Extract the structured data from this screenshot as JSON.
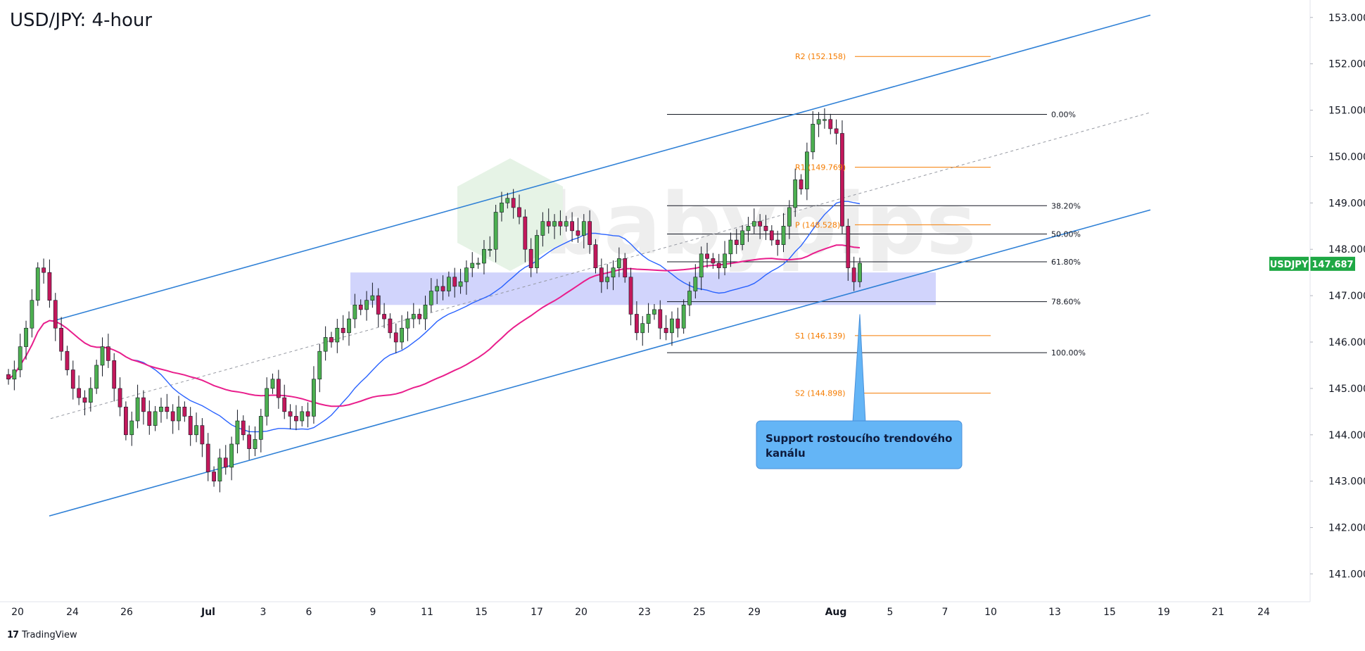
{
  "chart_data": {
    "type": "candlestick",
    "title": "USD/JPY: 4-hour",
    "symbol": "USDJPY",
    "last_price": "147.687",
    "ylim": [
      140.4,
      153.3
    ],
    "y_ticks": [
      "141.000",
      "142.000",
      "143.000",
      "144.000",
      "145.000",
      "146.000",
      "147.000",
      "148.000",
      "149.000",
      "150.000",
      "151.000",
      "152.000",
      "153.000"
    ],
    "x_ticks": [
      "20",
      "24",
      "26",
      "Jul",
      "3",
      "6",
      "9",
      "11",
      "15",
      "17",
      "20",
      "23",
      "25",
      "29",
      "Aug",
      "5",
      "7",
      "10",
      "13",
      "15",
      "19",
      "21",
      "24"
    ],
    "ohlc_path": [
      145.3,
      145.2,
      145.4,
      145.9,
      146.3,
      146.9,
      147.6,
      147.5,
      146.9,
      146.3,
      145.8,
      145.4,
      145.0,
      144.8,
      144.7,
      145.0,
      145.5,
      145.9,
      145.6,
      145.0,
      144.6,
      144.0,
      144.3,
      144.8,
      144.5,
      144.2,
      144.5,
      144.6,
      144.5,
      144.3,
      144.6,
      144.4,
      144.0,
      144.2,
      143.8,
      143.2,
      143.0,
      143.5,
      143.3,
      143.8,
      144.3,
      144.0,
      143.7,
      143.9,
      144.4,
      145.0,
      145.2,
      144.8,
      144.5,
      144.4,
      144.3,
      144.5,
      144.4,
      145.2,
      145.8,
      146.1,
      146.0,
      146.3,
      146.2,
      146.5,
      146.8,
      146.7,
      146.9,
      147.0,
      146.6,
      146.5,
      146.2,
      146.0,
      146.3,
      146.5,
      146.6,
      146.5,
      146.8,
      147.1,
      147.2,
      147.1,
      147.4,
      147.2,
      147.3,
      147.6,
      147.7,
      147.7,
      148.0,
      148.0,
      148.8,
      149.0,
      149.1,
      148.9,
      148.7,
      148.0,
      147.6,
      148.3,
      148.6,
      148.5,
      148.6,
      148.5,
      148.6,
      148.4,
      148.3,
      148.6,
      148.1,
      147.6,
      147.3,
      147.4,
      147.6,
      147.8,
      147.4,
      146.6,
      146.2,
      146.4,
      146.6,
      146.7,
      146.3,
      146.2,
      146.5,
      146.3,
      146.8,
      147.1,
      147.4,
      147.9,
      147.8,
      147.7,
      147.6,
      147.9,
      148.2,
      148.1,
      148.4,
      148.5,
      148.6,
      148.5,
      148.4,
      148.2,
      148.1,
      148.5,
      148.9,
      149.5,
      149.3,
      150.1,
      150.7,
      150.8,
      150.8,
      150.6,
      150.5,
      148.5,
      147.6,
      147.3,
      147.7
    ],
    "levels": [
      {
        "label": "0.00%",
        "value": 150.91,
        "kind": "fib"
      },
      {
        "label": "38.20%",
        "value": 148.94,
        "kind": "fib"
      },
      {
        "label": "50.00%",
        "value": 148.33,
        "kind": "fib"
      },
      {
        "label": "61.80%",
        "value": 147.73,
        "kind": "fib"
      },
      {
        "label": "78.60%",
        "value": 146.87,
        "kind": "fib"
      },
      {
        "label": "100.00%",
        "value": 145.77,
        "kind": "fib"
      },
      {
        "label": "R2 (152.158)",
        "value": 152.158,
        "kind": "pivot"
      },
      {
        "label": "R1 (149.769)",
        "value": 149.769,
        "kind": "pivot"
      },
      {
        "label": "P (148.528)",
        "value": 148.528,
        "kind": "pivot"
      },
      {
        "label": "S1 (146.139)",
        "value": 146.139,
        "kind": "pivot"
      },
      {
        "label": "S2 (144.898)",
        "value": 144.898,
        "kind": "pivot"
      }
    ],
    "support_zone": [
      146.8,
      147.5
    ],
    "callout": "Support rostoucího trendového kanálu",
    "watermark": "babypips",
    "colors": {
      "up": "#4caf50",
      "down": "#c2185b",
      "channel": "#2f80d6",
      "ma_fast": "#2962ff",
      "ma_slow": "#e91e8c",
      "pivot": "#f57c00",
      "zone": "#c9ccfb",
      "callout_bg": "#64b5f6",
      "price_tag": "#1fa845"
    }
  },
  "footer": {
    "brand": "TradingView"
  }
}
